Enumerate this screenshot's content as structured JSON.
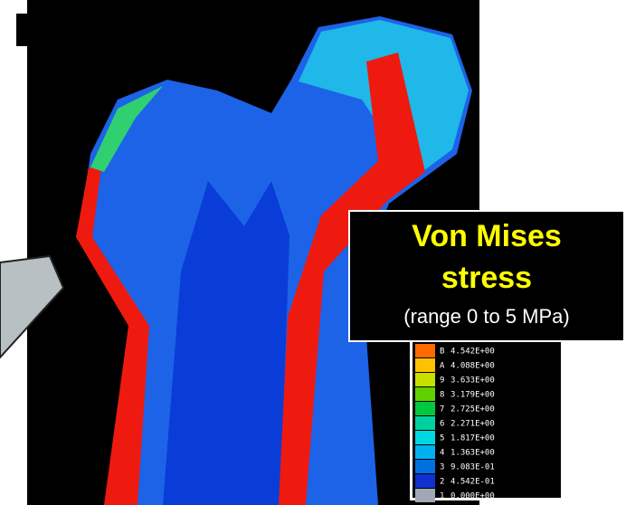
{
  "callout": {
    "lines": [
      "Von Mises",
      "stress",
      "(range 0 to 5 MPa)"
    ]
  },
  "legend": {
    "items": [
      {
        "index": "B",
        "label": "4.542E+00",
        "color": "#ff6a00"
      },
      {
        "index": "A",
        "label": "4.088E+00",
        "color": "#ffc000"
      },
      {
        "index": "9",
        "label": "3.633E+00",
        "color": "#c8e000"
      },
      {
        "index": "8",
        "label": "3.179E+00",
        "color": "#60d000"
      },
      {
        "index": "7",
        "label": "2.725E+00",
        "color": "#00c840"
      },
      {
        "index": "6",
        "label": "2.271E+00",
        "color": "#00d0a0"
      },
      {
        "index": "5",
        "label": "1.817E+00",
        "color": "#00d8e0"
      },
      {
        "index": "4",
        "label": "1.363E+00",
        "color": "#00b0f0"
      },
      {
        "index": "3",
        "label": "9.083E-01",
        "color": "#0070e0"
      },
      {
        "index": "2",
        "label": "4.542E-01",
        "color": "#1030d0"
      },
      {
        "index": "1",
        "label": "0.000E+00",
        "color": "#a0a8b8"
      }
    ]
  }
}
